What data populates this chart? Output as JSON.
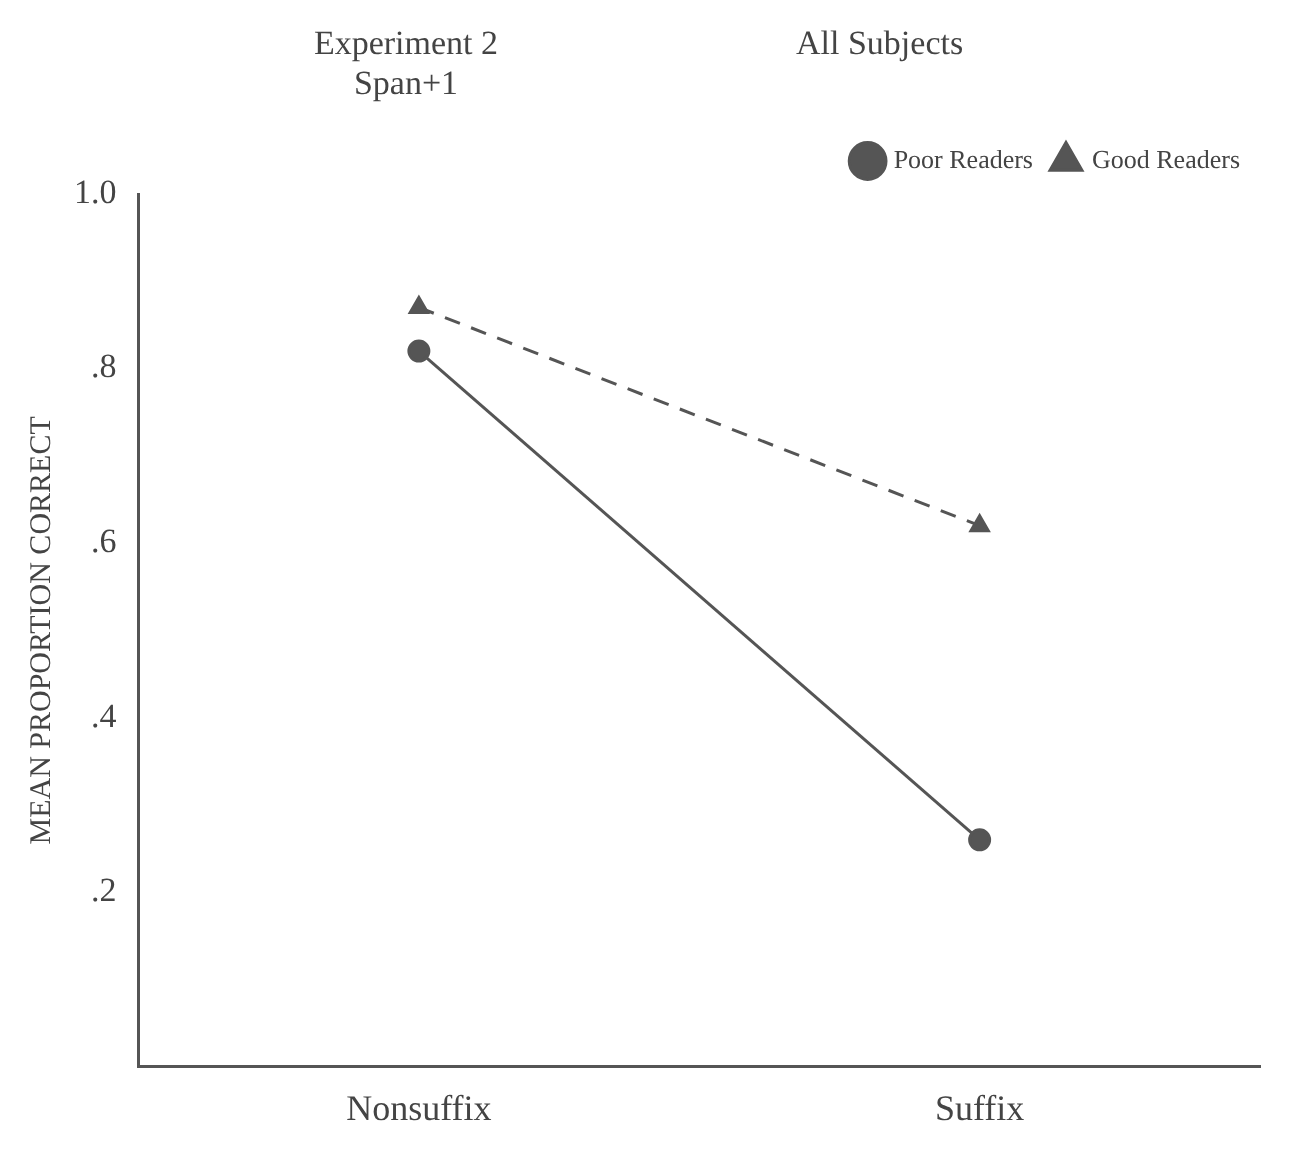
{
  "chart_data": {
    "type": "line",
    "title": "Experiment 2",
    "subtitle": "Span+1",
    "annotations": [
      "All Subjects"
    ],
    "ylabel": "MEAN PROPORTION CORRECT",
    "categories": [
      "Nonsuffix",
      "Suffix"
    ],
    "series": [
      {
        "name": "Poor Readers",
        "color": "#555555",
        "values": [
          0.82,
          0.26
        ],
        "marker": "circle",
        "line_style": "solid"
      },
      {
        "name": "Good Readers",
        "color": "#555555",
        "values": [
          0.87,
          0.62
        ],
        "marker": "triangle",
        "line_style": "dashed"
      }
    ],
    "ylim": [
      0,
      1
    ],
    "yticks": [
      {
        "value": 0.2,
        "label": ".2"
      },
      {
        "value": 0.4,
        "label": ".4"
      },
      {
        "value": 0.6,
        "label": ".6"
      },
      {
        "value": 0.8,
        "label": ".8"
      },
      {
        "value": 1,
        "label": "1.0"
      }
    ],
    "grid": false,
    "legend": "top right"
  }
}
